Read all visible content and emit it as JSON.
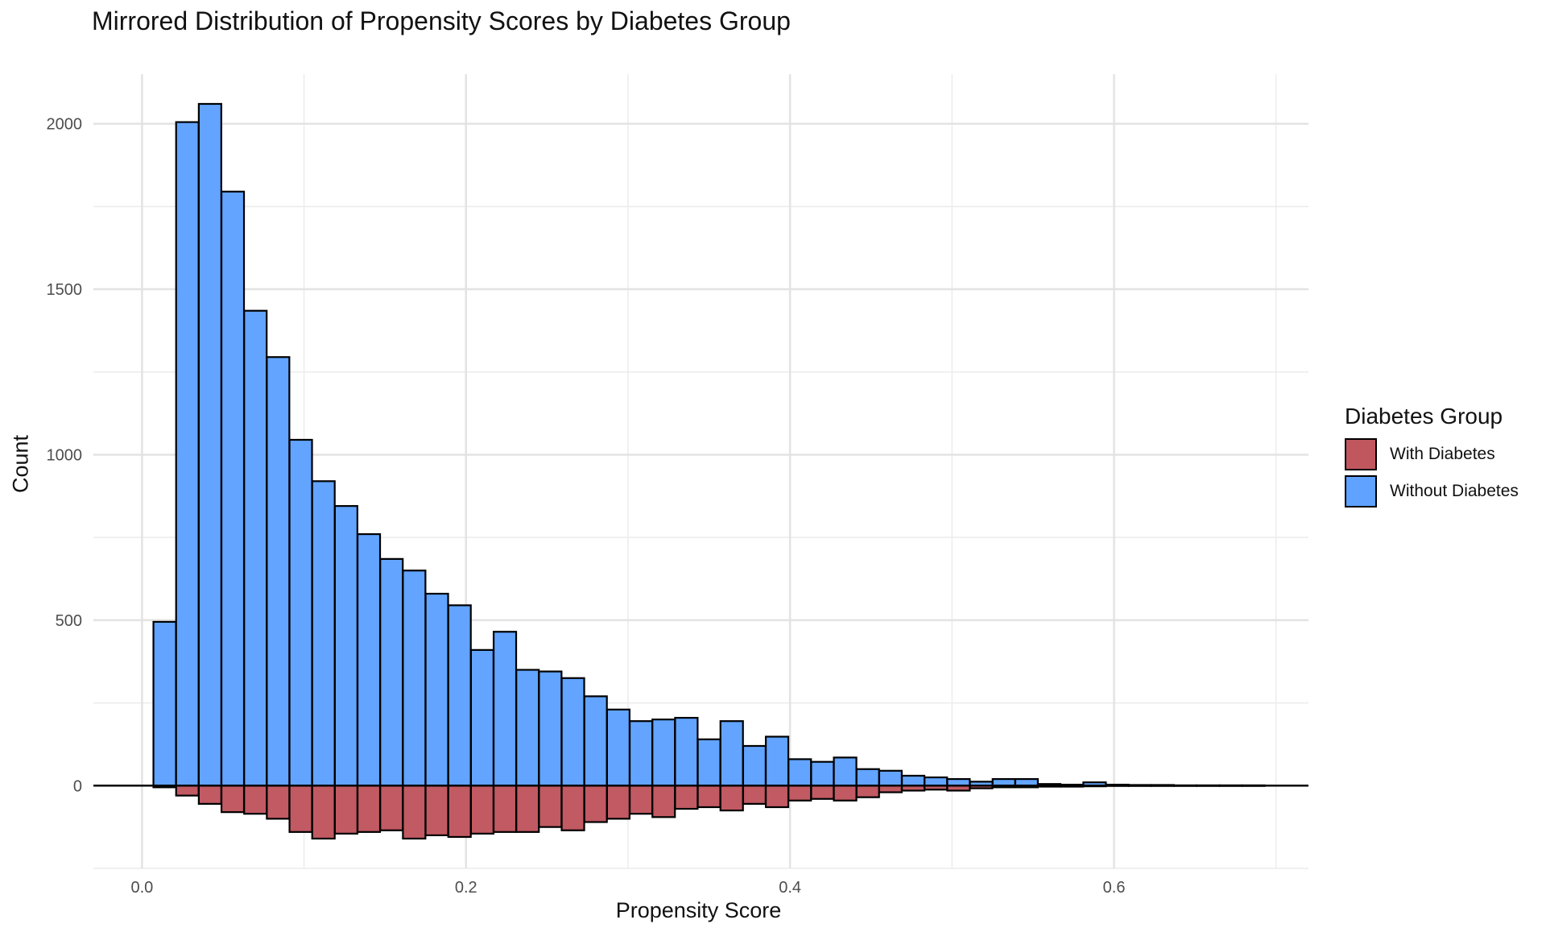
{
  "chart_data": {
    "type": "bar",
    "title": "Mirrored Distribution of Propensity Scores by Diabetes Group",
    "xlabel": "Propensity Score",
    "ylabel": "Count",
    "xlim": [
      -0.03,
      0.72
    ],
    "ylim": [
      -250,
      2150
    ],
    "x_ticks": [
      0.0,
      0.2,
      0.4,
      0.6
    ],
    "x_tick_labels": [
      "0.0",
      "0.2",
      "0.4",
      "0.6"
    ],
    "y_ticks": [
      0,
      500,
      1000,
      1500,
      2000
    ],
    "y_tick_labels": [
      "0",
      "500",
      "1000",
      "1500",
      "2000"
    ],
    "grid": true,
    "legend": {
      "title": "Diabetes Group",
      "position": "right",
      "items": [
        {
          "label": "With Diabetes",
          "color": "#c0575f"
        },
        {
          "label": "Without Diabetes",
          "color": "#5fa2ff"
        }
      ]
    },
    "bin_width": 0.0139,
    "bin_centers": [
      0.014,
      0.028,
      0.042,
      0.056,
      0.07,
      0.084,
      0.098,
      0.112,
      0.126,
      0.14,
      0.154,
      0.168,
      0.182,
      0.196,
      0.21,
      0.224,
      0.238,
      0.252,
      0.266,
      0.28,
      0.294,
      0.308,
      0.322,
      0.336,
      0.35,
      0.364,
      0.378,
      0.392,
      0.406,
      0.42,
      0.434,
      0.448,
      0.462,
      0.476,
      0.49,
      0.504,
      0.518,
      0.532,
      0.546,
      0.56,
      0.574,
      0.588,
      0.602,
      0.616,
      0.63,
      0.644,
      0.658,
      0.672,
      0.686
    ],
    "series": [
      {
        "name": "Without Diabetes",
        "color": "#5fa2ff",
        "direction": "up",
        "values": [
          495,
          2005,
          2060,
          1795,
          1435,
          1295,
          1045,
          920,
          845,
          760,
          685,
          650,
          580,
          545,
          410,
          465,
          350,
          345,
          325,
          270,
          230,
          195,
          200,
          205,
          140,
          195,
          120,
          148,
          80,
          72,
          85,
          50,
          45,
          30,
          25,
          20,
          12,
          20,
          20,
          5,
          3,
          10,
          3,
          2,
          2,
          1,
          1,
          1,
          1
        ]
      },
      {
        "name": "With Diabetes",
        "color": "#c0575f",
        "direction": "down",
        "values": [
          5,
          30,
          55,
          80,
          85,
          100,
          140,
          160,
          145,
          140,
          135,
          160,
          150,
          155,
          145,
          140,
          140,
          125,
          135,
          110,
          100,
          85,
          95,
          70,
          65,
          75,
          55,
          65,
          45,
          40,
          45,
          35,
          20,
          15,
          12,
          15,
          8,
          5,
          5,
          3,
          3,
          2,
          1,
          1,
          1,
          1,
          1,
          1,
          1
        ]
      }
    ]
  }
}
